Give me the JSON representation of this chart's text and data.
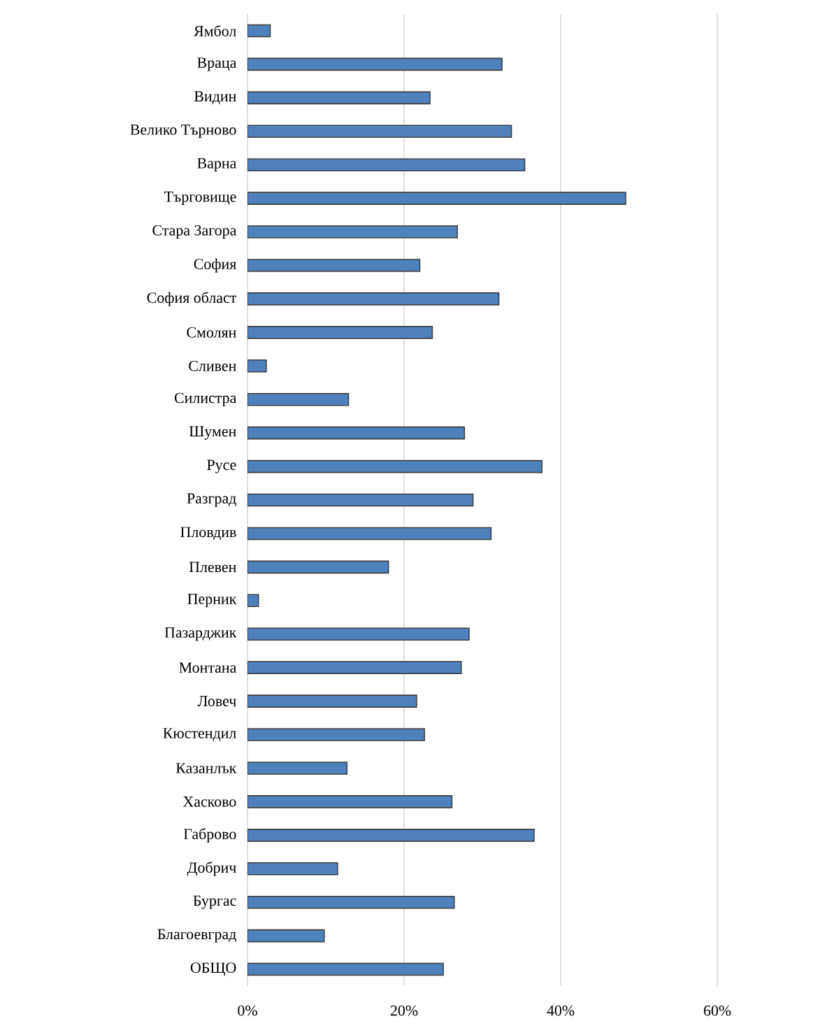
{
  "chart_data": {
    "type": "bar",
    "orientation": "horizontal",
    "categories": [
      "Ямбол",
      "Враца",
      "Видин",
      "Велико Търново",
      "Варна",
      "Търговище",
      "Стара Загора",
      "София",
      "София област",
      "Смолян",
      "Сливен",
      "Силистра",
      "Шумен",
      "Русе",
      "Разград",
      "Пловдив",
      "Плевен",
      "Перник",
      "Пазарджик",
      "Монтана",
      "Ловеч",
      "Кюстендил",
      "Казанлък",
      "Хасково",
      "Габрово",
      "Добрич",
      "Бургас",
      "Благоевград",
      "ОБЩО"
    ],
    "values": [
      2.9,
      32.5,
      23.3,
      33.7,
      35.4,
      48.3,
      26.8,
      22.0,
      32.1,
      23.6,
      2.4,
      12.9,
      27.7,
      37.6,
      28.8,
      31.1,
      18.0,
      1.4,
      28.3,
      27.3,
      21.6,
      22.6,
      12.7,
      26.1,
      36.6,
      11.5,
      26.4,
      9.8,
      25.0
    ],
    "color": "#4f81bd",
    "xlim": [
      0,
      60
    ],
    "xticks": [
      {
        "value": 0,
        "label": "0%"
      },
      {
        "value": 20,
        "label": "20%"
      },
      {
        "value": 40,
        "label": "40%"
      },
      {
        "value": 60,
        "label": "60%"
      }
    ],
    "grid": "x"
  }
}
